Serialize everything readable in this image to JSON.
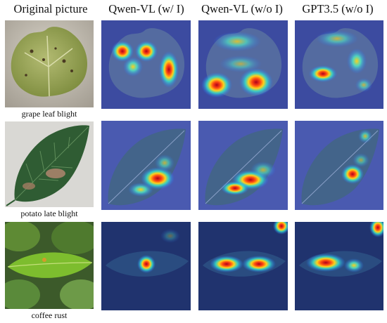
{
  "columns": [
    "Original picture",
    "Qwen-VL (w/ I)",
    "Qwen-VL (w/o I)",
    "GPT3.5 (w/o I)"
  ],
  "rows": [
    {
      "label": "grape leaf blight"
    },
    {
      "label": "potato late blight"
    },
    {
      "label": "coffee rust"
    }
  ]
}
